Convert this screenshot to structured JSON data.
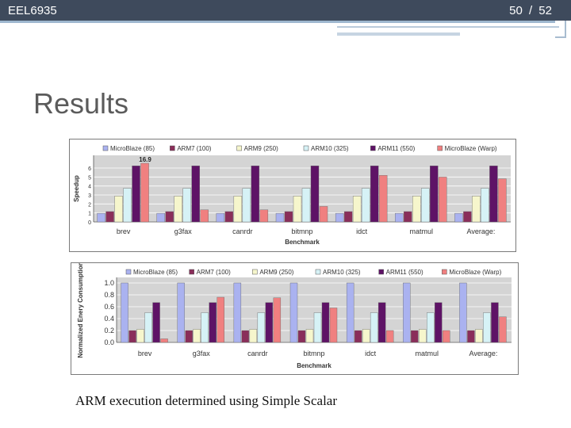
{
  "header": {
    "course": "EEL6935",
    "page": "50",
    "total": "/ 52"
  },
  "slide": {
    "title": "Results",
    "caption": "ARM execution determined using Simple Scalar"
  },
  "colors": {
    "topbar": "#3e4a5c",
    "series": [
      "#aab2f0",
      "#8a2e5a",
      "#f6f6cc",
      "#d6f2f6",
      "#5e1366",
      "#f08080"
    ]
  },
  "chart_data": [
    {
      "type": "bar",
      "ylabel": "Speedup",
      "xlabel": "Benchmark",
      "categories": [
        "brev",
        "g3fax",
        "canrdr",
        "bitmnp",
        "idct",
        "matmul",
        "Average:"
      ],
      "series": [
        {
          "name": "MicroBlaze (85)",
          "values": [
            1,
            1,
            1,
            1,
            1,
            1,
            1
          ]
        },
        {
          "name": "ARM7 (100)",
          "values": [
            1.2,
            1.2,
            1.2,
            1.2,
            1.2,
            1.2,
            1.2
          ]
        },
        {
          "name": "ARM9 (250)",
          "values": [
            3.0,
            3.0,
            3.0,
            3.0,
            3.0,
            3.0,
            3.0
          ]
        },
        {
          "name": "ARM10 (325)",
          "values": [
            3.9,
            3.9,
            3.9,
            3.9,
            3.9,
            3.9,
            3.9
          ]
        },
        {
          "name": "ARM11 (550)",
          "values": [
            6.5,
            6.5,
            6.5,
            6.5,
            6.5,
            6.5,
            6.5
          ]
        },
        {
          "name": "MicroBlaze (Warp)",
          "values": [
            16.9,
            1.4,
            1.4,
            1.8,
            5.4,
            5.2,
            5.0
          ]
        }
      ],
      "y_ticks": [
        "0",
        "1",
        "2",
        "3",
        "4",
        "5",
        "6"
      ],
      "annotation": {
        "label": "16.9"
      }
    },
    {
      "type": "bar",
      "ylabel": "Normalized Enery Consumption",
      "xlabel": "Benchmark",
      "categories": [
        "brev",
        "g3fax",
        "canrdr",
        "bitmnp",
        "idct",
        "matmul",
        "Average:"
      ],
      "series": [
        {
          "name": "MicroBlaze (85)",
          "values": [
            1.0,
            1.0,
            1.0,
            1.0,
            1.0,
            1.0,
            1.0
          ]
        },
        {
          "name": "ARM7 (100)",
          "values": [
            0.2,
            0.2,
            0.2,
            0.2,
            0.2,
            0.2,
            0.2
          ]
        },
        {
          "name": "ARM9 (250)",
          "values": [
            0.22,
            0.22,
            0.22,
            0.22,
            0.22,
            0.22,
            0.22
          ]
        },
        {
          "name": "ARM10 (325)",
          "values": [
            0.5,
            0.5,
            0.5,
            0.5,
            0.5,
            0.5,
            0.5
          ]
        },
        {
          "name": "ARM11 (550)",
          "values": [
            0.67,
            0.67,
            0.67,
            0.67,
            0.67,
            0.67,
            0.67
          ]
        },
        {
          "name": "MicroBlaze (Warp)",
          "values": [
            0.06,
            0.76,
            0.75,
            0.58,
            0.2,
            0.2,
            0.43
          ]
        }
      ],
      "y_ticks": [
        "0.0",
        "0.2",
        "0.4",
        "0.6",
        "0.8",
        "1.0"
      ],
      "ylim": [
        0,
        1
      ]
    }
  ]
}
